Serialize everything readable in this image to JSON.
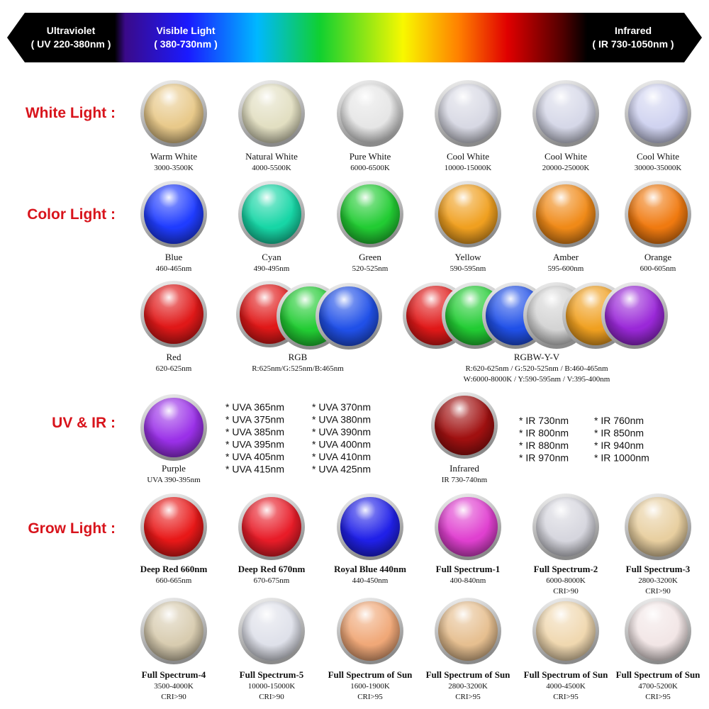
{
  "header": {
    "uv": {
      "title": "Ultraviolet",
      "range": "( UV 220-380nm )"
    },
    "visible": {
      "title": "Visible Light",
      "range": "( 380-730nm )"
    },
    "ir": {
      "title": "Infrared",
      "range": "( IR 730-1050nm )"
    }
  },
  "white_light": {
    "title": "White Light :",
    "items": [
      {
        "name": "Warm White",
        "lines": [
          "3000-3500K"
        ]
      },
      {
        "name": "Natural White",
        "lines": [
          "4000-5500K"
        ]
      },
      {
        "name": "Pure White",
        "lines": [
          "6000-6500K"
        ]
      },
      {
        "name": "Cool White",
        "lines": [
          "10000-15000K"
        ]
      },
      {
        "name": "Cool White",
        "lines": [
          "20000-25000K"
        ]
      },
      {
        "name": "Cool White",
        "lines": [
          "30000-35000K"
        ]
      }
    ]
  },
  "color_light": {
    "title": "Color Light :",
    "items": [
      {
        "name": "Blue",
        "lines": [
          "460-465nm"
        ]
      },
      {
        "name": "Cyan",
        "lines": [
          "490-495nm"
        ]
      },
      {
        "name": "Green",
        "lines": [
          "520-525nm"
        ]
      },
      {
        "name": "Yellow",
        "lines": [
          "590-595nm"
        ]
      },
      {
        "name": "Amber",
        "lines": [
          "595-600nm"
        ]
      },
      {
        "name": "Orange",
        "lines": [
          "600-605nm"
        ]
      },
      {
        "name": "Red",
        "lines": [
          "620-625nm"
        ]
      },
      {
        "name": "RGB",
        "lines": [
          "R:625nm/G:525nm/B:465nm"
        ]
      },
      {
        "name": "RGBW-Y-V",
        "lines": [
          "R:620-625nm / G:520-525nm / B:460-465nm",
          "W:6000-8000K / Y:590-595nm / V:395-400nm"
        ]
      }
    ]
  },
  "uv_ir": {
    "title": "UV & IR :",
    "items": [
      {
        "name": "Purple",
        "lines": [
          "UVA 390-395nm"
        ]
      },
      {
        "name": "Infrared",
        "lines": [
          "IR 730-740nm"
        ]
      }
    ],
    "uva_list": [
      "* UVA 365nm",
      "* UVA 375nm",
      "* UVA 385nm",
      "* UVA 395nm",
      "* UVA 405nm",
      "* UVA 415nm",
      "* UVA 370nm",
      "* UVA 380nm",
      "* UVA 390nm",
      "* UVA 400nm",
      "* UVA 410nm",
      "* UVA 425nm"
    ],
    "ir_list": [
      "* IR 730nm",
      "* IR 800nm",
      "* IR 880nm",
      "* IR 970nm",
      "* IR 760nm",
      "* IR 850nm",
      "* IR 940nm",
      "* IR 1000nm"
    ]
  },
  "grow_light": {
    "title": "Grow Light :",
    "items": [
      {
        "name": "Deep Red 660nm",
        "lines": [
          "660-665nm"
        ]
      },
      {
        "name": "Deep Red 670nm",
        "lines": [
          "670-675nm"
        ]
      },
      {
        "name": "Royal Blue 440nm",
        "lines": [
          "440-450nm"
        ]
      },
      {
        "name": "Full Spectrum-1",
        "lines": [
          "400-840nm"
        ]
      },
      {
        "name": "Full Spectrum-2",
        "lines": [
          "6000-8000K",
          "CRI>90"
        ]
      },
      {
        "name": "Full Spectrum-3",
        "lines": [
          "2800-3200K",
          "CRI>90"
        ]
      },
      {
        "name": "Full Spectrum-4",
        "lines": [
          "3500-4000K",
          "CRI>90"
        ]
      },
      {
        "name": "Full Spectrum-5",
        "lines": [
          "10000-15000K",
          "CRI>90"
        ]
      },
      {
        "name": "Full Spectrum of Sun",
        "lines": [
          "1600-1900K",
          "CRI>95"
        ]
      },
      {
        "name": "Full Spectrum of Sun",
        "lines": [
          "2800-3200K",
          "CRI>95"
        ]
      },
      {
        "name": "Full Spectrum of Sun",
        "lines": [
          "4000-4500K",
          "CRI>95"
        ]
      },
      {
        "name": "Full Spectrum of Sun",
        "lines": [
          "4700-5200K",
          "CRI>95"
        ]
      }
    ]
  }
}
